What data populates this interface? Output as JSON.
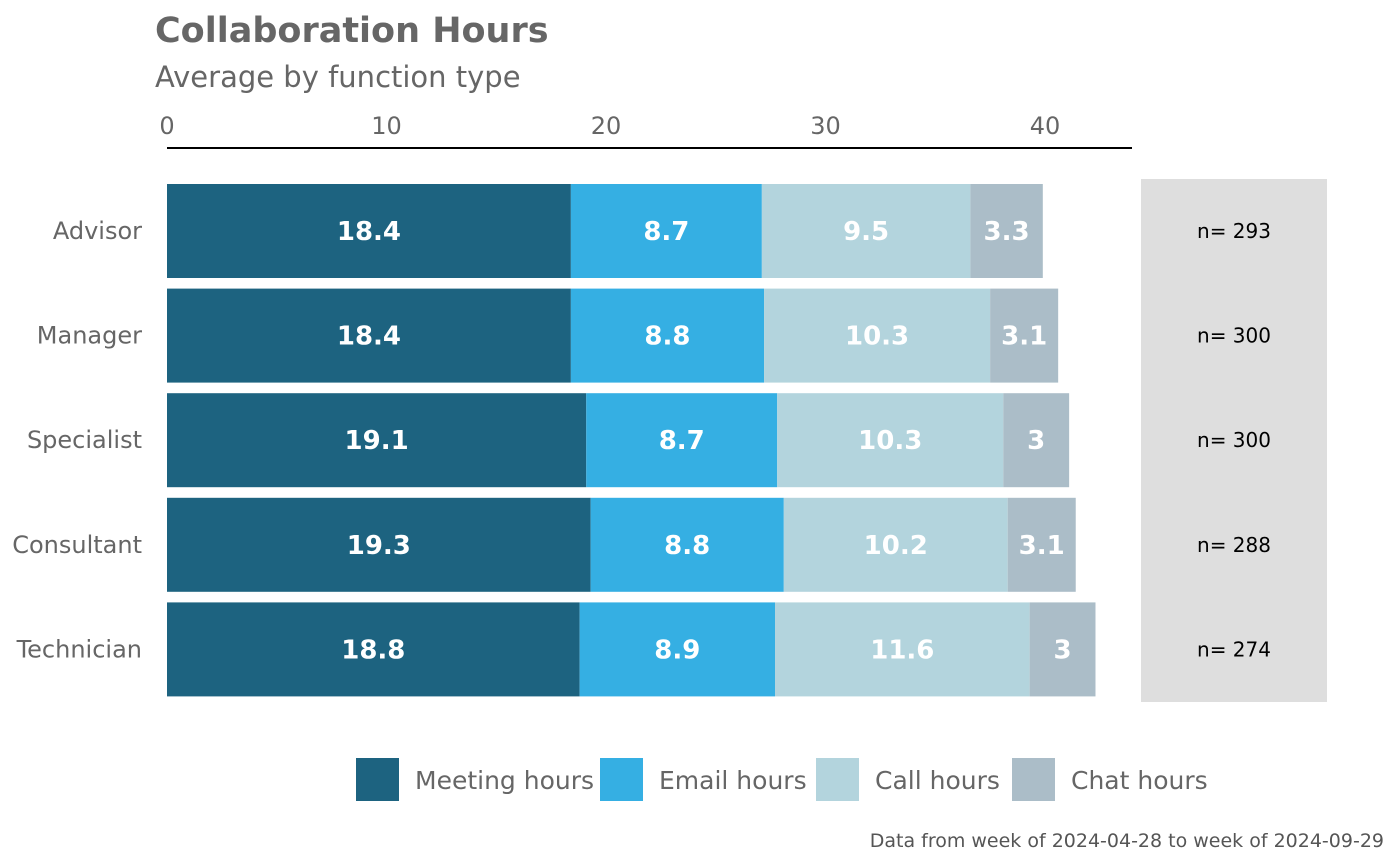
{
  "chart_data": {
    "type": "bar",
    "orientation": "horizontal",
    "stacked": true,
    "title": "Collaboration Hours",
    "subtitle": "Average by function type",
    "xlim": [
      0,
      44
    ],
    "x_ticks": [
      0,
      10,
      20,
      30,
      40
    ],
    "axis_position": "top",
    "grid": false,
    "legend_position": "bottom",
    "categories": [
      "Advisor",
      "Manager",
      "Specialist",
      "Consultant",
      "Technician"
    ],
    "series": [
      {
        "name": "Meeting hours",
        "color": "#1d6380",
        "values": [
          18.4,
          18.4,
          19.1,
          19.3,
          18.8
        ]
      },
      {
        "name": "Email hours",
        "color": "#35afe3",
        "values": [
          8.7,
          8.8,
          8.7,
          8.8,
          8.9
        ]
      },
      {
        "name": "Call hours",
        "color": "#b3d4dd",
        "values": [
          9.5,
          10.3,
          10.3,
          10.2,
          11.6
        ]
      },
      {
        "name": "Chat hours",
        "color": "#abbdc8",
        "values": [
          3.3,
          3.1,
          3,
          3.1,
          3
        ]
      }
    ],
    "n_labels": [
      "n= 293",
      "n= 300",
      "n= 300",
      "n= 288",
      "n= 274"
    ],
    "caption": "Data from week of 2024-04-28 to week of 2024-09-29"
  }
}
